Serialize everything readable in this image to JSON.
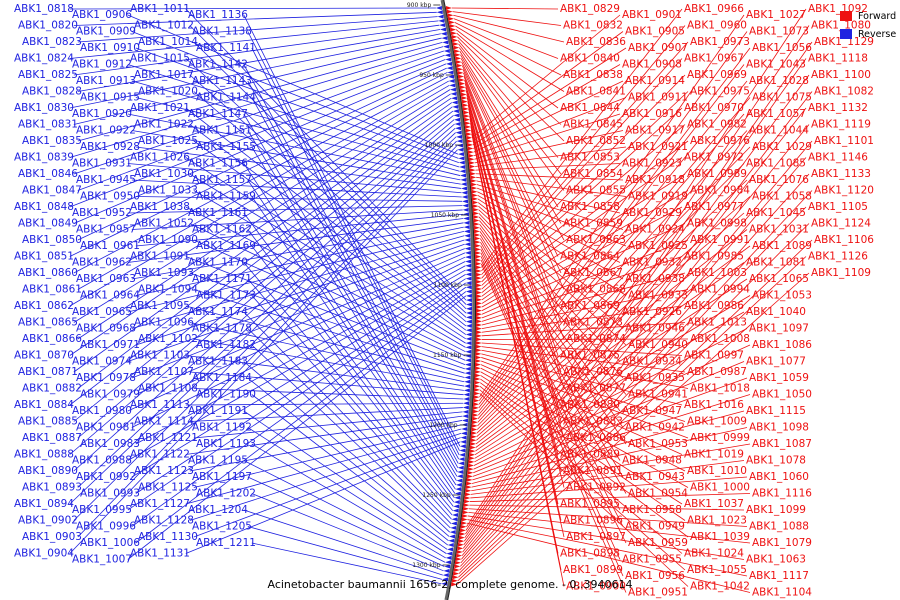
{
  "caption": "Acinetobacter baumannii 1656-2, complete genome. - 0..3940614",
  "colors": {
    "forward": "#ee1111",
    "reverse": "#1f22e0",
    "backbone": "#666666"
  },
  "legend": [
    {
      "label": "Forward",
      "color": "#ee1111"
    },
    {
      "label": "Reverse",
      "color": "#1f22e0"
    }
  ],
  "scale_ticks": [
    "900 kbp",
    "950 kbp",
    "1000 kbp",
    "1050 kbp",
    "1100 kbp",
    "1150 kbp",
    "1200 kbp",
    "1250 kbp",
    "1300 kbp"
  ],
  "reverse_genes": [
    "ABK1_0818",
    "ABK1_0820",
    "ABK1_0823",
    "ABK1_0824",
    "ABK1_0825",
    "ABK1_0828",
    "ABK1_0830",
    "ABK1_0831",
    "ABK1_0835",
    "ABK1_0839",
    "ABK1_0846",
    "ABK1_0847",
    "ABK1_0848",
    "ABK1_0849",
    "ABK1_0850",
    "ABK1_0851",
    "ABK1_0860",
    "ABK1_0861",
    "ABK1_0862",
    "ABK1_0865",
    "ABK1_0866",
    "ABK1_0870",
    "ABK1_0871",
    "ABK1_0882",
    "ABK1_0884",
    "ABK1_0885",
    "ABK1_0887",
    "ABK1_0888",
    "ABK1_0890",
    "ABK1_0893",
    "ABK1_0894",
    "ABK1_0902",
    "ABK1_0903",
    "ABK1_0904",
    "ABK1_0906",
    "ABK1_0909",
    "ABK1_0910",
    "ABK1_0912",
    "ABK1_0913",
    "ABK1_0915",
    "ABK1_0920",
    "ABK1_0922",
    "ABK1_0928",
    "ABK1_0931",
    "ABK1_0945",
    "ABK1_0950",
    "ABK1_0952",
    "ABK1_0957",
    "ABK1_0961",
    "ABK1_0962",
    "ABK1_0963",
    "ABK1_0964",
    "ABK1_0965",
    "ABK1_0968",
    "ABK1_0971",
    "ABK1_0974",
    "ABK1_0978",
    "ABK1_0979",
    "ABK1_0980",
    "ABK1_0981",
    "ABK1_0983",
    "ABK1_0988",
    "ABK1_0992",
    "ABK1_0993",
    "ABK1_0995",
    "ABK1_0996",
    "ABK1_1006",
    "ABK1_1007",
    "ABK1_1011",
    "ABK1_1012",
    "ABK1_1014",
    "ABK1_1015",
    "ABK1_1017",
    "ABK1_1020",
    "ABK1_1021",
    "ABK1_1022",
    "ABK1_1025",
    "ABK1_1026",
    "ABK1_1030",
    "ABK1_1033",
    "ABK1_1038",
    "ABK1_1052",
    "ABK1_1090",
    "ABK1_1091",
    "ABK1_1093",
    "ABK1_1094",
    "ABK1_1095",
    "ABK1_1096",
    "ABK1_1102",
    "ABK1_1103",
    "ABK1_1107",
    "ABK1_1108",
    "ABK1_1113",
    "ABK1_1114",
    "ABK1_1121",
    "ABK1_1122",
    "ABK1_1123",
    "ABK1_1125",
    "ABK1_1127",
    "ABK1_1128",
    "ABK1_1130",
    "ABK1_1131",
    "ABK1_1136",
    "ABK1_1138",
    "ABK1_1141",
    "ABK1_1142",
    "ABK1_1143",
    "ABK1_1144",
    "ABK1_1147",
    "ABK1_1151",
    "ABK1_1155",
    "ABK1_1156",
    "ABK1_1157",
    "ABK1_1159",
    "ABK1_1161",
    "ABK1_1162",
    "ABK1_1169",
    "ABK1_1170",
    "ABK1_1171",
    "ABK1_1173",
    "ABK1_1174",
    "ABK1_1178",
    "ABK1_1182",
    "ABK1_1183",
    "ABK1_1184",
    "ABK1_1190",
    "ABK1_1191",
    "ABK1_1192",
    "ABK1_1193",
    "ABK1_1195",
    "ABK1_1197",
    "ABK1_1202",
    "ABK1_1204",
    "ABK1_1205",
    "ABK1_1211"
  ],
  "forward_genes": [
    "ABK1_0829",
    "ABK1_0832",
    "ABK1_0836",
    "ABK1_0840",
    "ABK1_0838",
    "ABK1_0841",
    "ABK1_0844",
    "ABK1_0845",
    "ABK1_0852",
    "ABK1_0853",
    "ABK1_0854",
    "ABK1_0855",
    "ABK1_0858",
    "ABK1_0859",
    "ABK1_0863",
    "ABK1_0864",
    "ABK1_0867",
    "ABK1_0868",
    "ABK1_0869",
    "ABK1_0873",
    "ABK1_0874",
    "ABK1_0875",
    "ABK1_0876",
    "ABK1_0877",
    "ABK1_0880",
    "ABK1_0883",
    "ABK1_0886",
    "ABK1_0889",
    "ABK1_0891",
    "ABK1_0892",
    "ABK1_0895",
    "ABK1_0896",
    "ABK1_0897",
    "ABK1_0898",
    "ABK1_0899",
    "ABK1_0900",
    "ABK1_0901",
    "ABK1_0905",
    "ABK1_0907",
    "ABK1_0908",
    "ABK1_0914",
    "ABK1_0911",
    "ABK1_0916",
    "ABK1_0917",
    "ABK1_0921",
    "ABK1_0923",
    "ABK1_0918",
    "ABK1_0919",
    "ABK1_0929",
    "ABK1_0924",
    "ABK1_0925",
    "ABK1_0932",
    "ABK1_0938",
    "ABK1_0933",
    "ABK1_0926",
    "ABK1_0946",
    "ABK1_0940",
    "ABK1_0934",
    "ABK1_0935",
    "ABK1_0941",
    "ABK1_0947",
    "ABK1_0942",
    "ABK1_0953",
    "ABK1_0948",
    "ABK1_0943",
    "ABK1_0954",
    "ABK1_0958",
    "ABK1_0949",
    "ABK1_0959",
    "ABK1_0955",
    "ABK1_0956",
    "ABK1_0951",
    "ABK1_0966",
    "ABK1_0960",
    "ABK1_0973",
    "ABK1_0967",
    "ABK1_0969",
    "ABK1_0975",
    "ABK1_0970",
    "ABK1_0982",
    "ABK1_0976",
    "ABK1_0972",
    "ABK1_0989",
    "ABK1_0984",
    "ABK1_0977",
    "ABK1_0998",
    "ABK1_0991",
    "ABK1_0985",
    "ABK1_1003",
    "ABK1_0994",
    "ABK1_0986",
    "ABK1_1013",
    "ABK1_1008",
    "ABK1_0997",
    "ABK1_0987",
    "ABK1_1018",
    "ABK1_1016",
    "ABK1_1009",
    "ABK1_0999",
    "ABK1_1019",
    "ABK1_1010",
    "ABK1_1000",
    "ABK1_1037",
    "ABK1_1023",
    "ABK1_1039",
    "ABK1_1024",
    "ABK1_1055",
    "ABK1_1042",
    "ABK1_1027",
    "ABK1_1073",
    "ABK1_1056",
    "ABK1_1043",
    "ABK1_1028",
    "ABK1_1075",
    "ABK1_1057",
    "ABK1_1044",
    "ABK1_1029",
    "ABK1_1085",
    "ABK1_1076",
    "ABK1_1058",
    "ABK1_1045",
    "ABK1_1031",
    "ABK1_1089",
    "ABK1_1081",
    "ABK1_1065",
    "ABK1_1053",
    "ABK1_1040",
    "ABK1_1097",
    "ABK1_1086",
    "ABK1_1077",
    "ABK1_1059",
    "ABK1_1050",
    "ABK1_1115",
    "ABK1_1098",
    "ABK1_1087",
    "ABK1_1078",
    "ABK1_1060",
    "ABK1_1116",
    "ABK1_1099",
    "ABK1_1088",
    "ABK1_1079",
    "ABK1_1063",
    "ABK1_1117",
    "ABK1_1104",
    "ABK1_1092",
    "ABK1_1080",
    "ABK1_1129",
    "ABK1_1118",
    "ABK1_1100",
    "ABK1_1082",
    "ABK1_1132",
    "ABK1_1119",
    "ABK1_1101",
    "ABK1_1146",
    "ABK1_1133",
    "ABK1_1120",
    "ABK1_1105",
    "ABK1_1124",
    "ABK1_1106",
    "ABK1_1126",
    "ABK1_1109"
  ]
}
